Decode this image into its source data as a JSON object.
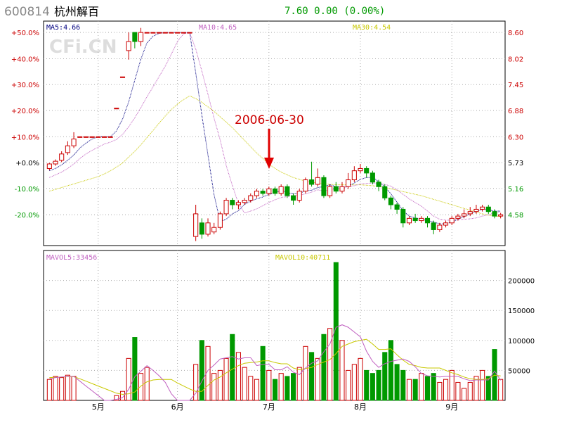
{
  "header": {
    "code": "600814",
    "name": "杭州解百",
    "quote": "7.60  0.00 (0.00%)"
  },
  "watermark": "CFi.CN",
  "annotation": {
    "label": "2006-06-30"
  },
  "colors": {
    "up": "#cc0000",
    "down": "#009900",
    "ma5": "#000080",
    "ma10": "#c060c0",
    "ma30": "#c8c800",
    "grid": "#aaaaaa",
    "frame": "#000000",
    "text_red": "#cc0000",
    "text_green": "#009900"
  },
  "chart_data": [
    {
      "type": "candlestick",
      "legend": [
        {
          "name": "MA5",
          "text": "MA5:4.66"
        },
        {
          "name": "MA10",
          "text": "MA10:4.65"
        },
        {
          "name": "MA30",
          "text": "MA30:4.54"
        }
      ],
      "ylim": [
        3.9,
        8.85
      ],
      "base_price": 5.73,
      "y_ticks_left": [
        "+50.0%",
        "+40.0%",
        "+30.0%",
        "+20.0%",
        "+10.0%",
        "+0.0%",
        "-10.0%",
        "-20.0%"
      ],
      "y_ticks_right": [
        8.6,
        8.02,
        7.45,
        6.88,
        6.3,
        5.73,
        5.16,
        4.58
      ],
      "x_ticks": [
        "5月",
        "6月",
        "7月",
        "8月",
        "9月"
      ],
      "x_tick_index": [
        8,
        21,
        36,
        51,
        66
      ],
      "candles": [
        [
          5.6,
          5.7,
          5.72,
          5.56
        ],
        [
          5.7,
          5.76,
          5.8,
          5.66
        ],
        [
          5.78,
          5.92,
          5.98,
          5.74
        ],
        [
          5.95,
          6.1,
          6.2,
          5.9
        ],
        [
          6.1,
          6.25,
          6.4,
          6.05
        ],
        [
          6.3,
          6.3,
          6.3,
          6.3
        ],
        [
          6.3,
          6.3,
          6.3,
          6.3
        ],
        [
          6.3,
          6.3,
          6.3,
          6.3
        ],
        [
          6.3,
          6.3,
          6.3,
          6.3
        ],
        [
          6.3,
          6.3,
          6.3,
          6.3
        ],
        [
          6.3,
          6.3,
          6.3,
          6.3
        ],
        [
          6.93,
          6.93,
          6.93,
          6.93
        ],
        [
          7.62,
          7.62,
          7.62,
          7.62
        ],
        [
          8.2,
          8.4,
          8.6,
          8.0
        ],
        [
          8.6,
          8.4,
          8.6,
          8.25
        ],
        [
          8.4,
          8.6,
          8.7,
          8.3
        ],
        [
          8.6,
          8.6,
          8.6,
          8.6
        ],
        [
          8.6,
          8.6,
          8.6,
          8.6
        ],
        [
          8.6,
          8.6,
          8.6,
          8.6
        ],
        [
          8.6,
          8.6,
          8.6,
          8.6
        ],
        [
          8.6,
          8.6,
          8.6,
          8.6
        ],
        [
          8.6,
          8.6,
          8.6,
          8.6
        ],
        [
          8.6,
          8.6,
          8.6,
          8.6
        ],
        [
          8.6,
          8.6,
          8.6,
          8.6
        ],
        [
          4.1,
          4.6,
          4.8,
          4.0
        ],
        [
          4.4,
          4.15,
          4.5,
          4.05
        ],
        [
          4.15,
          4.4,
          4.5,
          4.1
        ],
        [
          4.2,
          4.3,
          4.4,
          4.15
        ],
        [
          4.3,
          4.6,
          4.65,
          4.25
        ],
        [
          4.6,
          4.9,
          4.95,
          4.55
        ],
        [
          4.9,
          4.8,
          4.95,
          4.7
        ],
        [
          4.8,
          4.85,
          4.9,
          4.7
        ],
        [
          4.85,
          4.9,
          4.95,
          4.8
        ],
        [
          4.9,
          5.0,
          5.05,
          4.85
        ],
        [
          5.0,
          5.1,
          5.15,
          4.95
        ],
        [
          5.1,
          5.05,
          5.15,
          5.0
        ],
        [
          5.05,
          5.15,
          5.2,
          5.0
        ],
        [
          5.15,
          5.05,
          5.2,
          5.0
        ],
        [
          5.05,
          5.2,
          5.25,
          5.0
        ],
        [
          5.2,
          5.0,
          5.25,
          4.95
        ],
        [
          5.0,
          4.9,
          5.05,
          4.8
        ],
        [
          4.9,
          5.1,
          5.15,
          4.85
        ],
        [
          5.1,
          5.35,
          5.4,
          5.05
        ],
        [
          5.35,
          5.25,
          5.75,
          5.2
        ],
        [
          5.25,
          5.4,
          5.6,
          5.2
        ],
        [
          5.4,
          5.0,
          5.45,
          4.95
        ],
        [
          5.0,
          5.2,
          5.25,
          4.95
        ],
        [
          5.2,
          5.1,
          5.3,
          5.05
        ],
        [
          5.1,
          5.2,
          5.3,
          5.05
        ],
        [
          5.2,
          5.35,
          5.5,
          5.15
        ],
        [
          5.35,
          5.55,
          5.65,
          5.3
        ],
        [
          5.55,
          5.6,
          5.7,
          5.5
        ],
        [
          5.6,
          5.5,
          5.65,
          5.4
        ],
        [
          5.5,
          5.3,
          5.55,
          5.25
        ],
        [
          5.3,
          5.2,
          5.35,
          5.1
        ],
        [
          5.2,
          4.95,
          5.25,
          4.9
        ],
        [
          4.95,
          4.8,
          5.0,
          4.7
        ],
        [
          4.8,
          4.7,
          4.85,
          4.6
        ],
        [
          4.7,
          4.4,
          4.75,
          4.3
        ],
        [
          4.4,
          4.5,
          4.55,
          4.35
        ],
        [
          4.5,
          4.45,
          4.6,
          4.4
        ],
        [
          4.45,
          4.5,
          4.55,
          4.4
        ],
        [
          4.5,
          4.4,
          4.55,
          4.3
        ],
        [
          4.4,
          4.25,
          4.45,
          4.15
        ],
        [
          4.25,
          4.35,
          4.4,
          4.2
        ],
        [
          4.35,
          4.4,
          4.45,
          4.3
        ],
        [
          4.4,
          4.5,
          4.55,
          4.35
        ],
        [
          4.5,
          4.55,
          4.6,
          4.45
        ],
        [
          4.55,
          4.6,
          4.7,
          4.5
        ],
        [
          4.6,
          4.65,
          4.75,
          4.55
        ],
        [
          4.65,
          4.7,
          4.8,
          4.6
        ],
        [
          4.7,
          4.75,
          4.8,
          4.65
        ],
        [
          4.75,
          4.65,
          4.8,
          4.6
        ],
        [
          4.65,
          4.55,
          4.7,
          4.5
        ],
        [
          4.55,
          4.58,
          4.62,
          4.5
        ]
      ],
      "ma5": [
        5.55,
        5.6,
        5.68,
        5.78,
        5.9,
        6.05,
        6.16,
        6.25,
        6.3,
        6.3,
        6.3,
        6.43,
        6.69,
        7.07,
        7.55,
        8.01,
        8.37,
        8.52,
        8.58,
        8.6,
        8.6,
        8.6,
        8.6,
        8.6,
        7.7,
        6.78,
        5.9,
        5.02,
        4.43,
        4.48,
        4.6,
        4.67,
        4.81,
        4.88,
        4.93,
        4.97,
        5.03,
        5.06,
        5.12,
        5.07,
        5.04,
        5.05,
        5.11,
        5.12,
        5.18,
        5.2,
        5.24,
        5.2,
        5.19,
        5.21,
        5.28,
        5.36,
        5.4,
        5.4,
        5.31,
        5.2,
        5.04,
        4.86,
        4.67,
        4.55,
        4.51,
        4.48,
        4.45,
        4.42,
        4.38,
        4.38,
        4.42,
        4.48,
        4.54,
        4.6,
        4.65,
        4.7,
        4.69,
        4.66,
        4.66
      ],
      "ma10": [
        5.4,
        5.46,
        5.52,
        5.6,
        5.7,
        5.82,
        5.92,
        6.0,
        6.07,
        6.14,
        6.18,
        6.24,
        6.35,
        6.52,
        6.72,
        6.94,
        7.18,
        7.4,
        7.63,
        7.86,
        8.12,
        8.4,
        8.57,
        8.6,
        8.23,
        7.75,
        7.24,
        6.71,
        6.23,
        5.66,
        5.23,
        4.82,
        4.62,
        4.66,
        4.71,
        4.78,
        4.85,
        4.91,
        4.96,
        4.98,
        5.0,
        5.01,
        5.04,
        5.08,
        5.13,
        5.1,
        5.13,
        5.15,
        5.16,
        5.2,
        5.22,
        5.26,
        5.27,
        5.28,
        5.27,
        5.25,
        5.21,
        5.13,
        5.03,
        4.93,
        4.85,
        4.77,
        4.66,
        4.55,
        4.48,
        4.46,
        4.46,
        4.47,
        4.48,
        4.49,
        4.51,
        4.55,
        4.58,
        4.62,
        4.65
      ],
      "ma30": [
        5.1,
        5.14,
        5.18,
        5.22,
        5.26,
        5.3,
        5.34,
        5.38,
        5.42,
        5.48,
        5.55,
        5.63,
        5.72,
        5.85,
        5.98,
        6.12,
        6.28,
        6.44,
        6.6,
        6.76,
        6.9,
        7.02,
        7.12,
        7.2,
        7.14,
        7.06,
        6.96,
        6.86,
        6.74,
        6.62,
        6.5,
        6.36,
        6.22,
        6.08,
        5.94,
        5.82,
        5.7,
        5.6,
        5.52,
        5.46,
        5.4,
        5.36,
        5.32,
        5.3,
        5.28,
        5.26,
        5.25,
        5.24,
        5.24,
        5.24,
        5.24,
        5.24,
        5.23,
        5.22,
        5.2,
        5.18,
        5.15,
        5.12,
        5.09,
        5.06,
        5.03,
        5.0,
        4.96,
        4.92,
        4.88,
        4.84,
        4.8,
        4.76,
        4.72,
        4.68,
        4.64,
        4.6,
        4.57,
        4.55,
        4.54
      ]
    },
    {
      "type": "bar",
      "legend": [
        {
          "name": "MAVOL5",
          "text": "MAVOL5:33456"
        },
        {
          "name": "MAVOL10",
          "text": "MAVOL10:40711"
        }
      ],
      "ylim": [
        0,
        250000
      ],
      "y_ticks": [
        200000,
        150000,
        100000,
        50000
      ],
      "volume": [
        35000,
        40000,
        38000,
        42000,
        40000,
        0,
        0,
        0,
        0,
        0,
        0,
        8000,
        15000,
        70000,
        105000,
        45000,
        55000,
        0,
        0,
        0,
        0,
        0,
        0,
        0,
        60000,
        100000,
        90000,
        45000,
        50000,
        70000,
        110000,
        80000,
        55000,
        40000,
        35000,
        90000,
        50000,
        35000,
        45000,
        40000,
        45000,
        55000,
        90000,
        80000,
        70000,
        110000,
        120000,
        230000,
        100000,
        50000,
        60000,
        70000,
        50000,
        45000,
        50000,
        80000,
        100000,
        60000,
        50000,
        35000,
        35000,
        45000,
        40000,
        45000,
        30000,
        35000,
        50000,
        30000,
        20000,
        30000,
        40000,
        50000,
        40000,
        85000,
        35000
      ],
      "mavol5": [
        36000,
        38000,
        39000,
        39500,
        40000,
        32000,
        24000,
        16000,
        8000,
        0,
        0,
        1600,
        4600,
        18600,
        39600,
        48600,
        58000,
        50000,
        41000,
        30000,
        11000,
        0,
        0,
        0,
        12000,
        32000,
        50000,
        59000,
        69000,
        71000,
        73000,
        69000,
        71000,
        71000,
        58000,
        60000,
        60000,
        51000,
        51000,
        56000,
        47000,
        43000,
        54000,
        62000,
        66000,
        81000,
        94000,
        122000,
        126000,
        122000,
        114000,
        106000,
        82000,
        65000,
        55000,
        61000,
        65000,
        67000,
        69000,
        65000,
        56000,
        45000,
        41000,
        40000,
        39000,
        40000,
        40000,
        40000,
        36000,
        33000,
        34000,
        34000,
        34000,
        49000,
        33456
      ],
      "mavol10": [
        38000,
        38500,
        39000,
        39300,
        39500,
        36000,
        32000,
        28000,
        24000,
        20000,
        16000,
        12000,
        10000,
        11000,
        14000,
        24000,
        31000,
        34000,
        35000,
        35000,
        35000,
        29000,
        24000,
        19000,
        15000,
        15000,
        25000,
        34000,
        39000,
        46000,
        52000,
        58000,
        62000,
        63000,
        64000,
        66000,
        66000,
        63000,
        61000,
        61000,
        54000,
        51000,
        53000,
        55000,
        60000,
        64000,
        68000,
        78000,
        90000,
        94000,
        98000,
        100000,
        102000,
        94000,
        85000,
        85000,
        86000,
        76000,
        67000,
        60000,
        58000,
        55000,
        54000,
        54000,
        54000,
        50000,
        46000,
        43000,
        39000,
        36000,
        35000,
        35000,
        36000,
        42000,
        40711
      ],
      "x_ticks": [
        "5月",
        "6月",
        "7月",
        "8月",
        "9月"
      ]
    }
  ]
}
